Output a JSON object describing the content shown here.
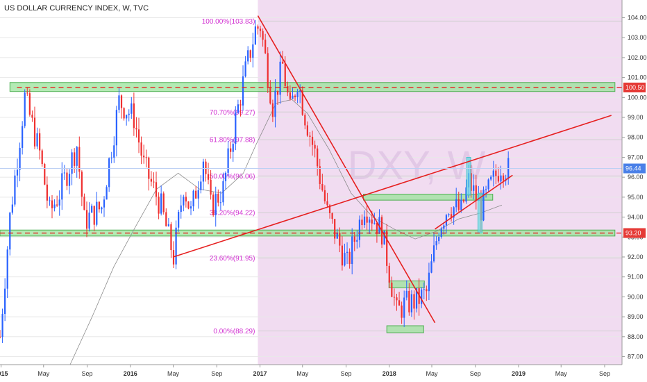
{
  "header": {
    "title": "US DOLLAR CURRENCY INDEX, W, TVC"
  },
  "watermark": "DXY, W",
  "colors": {
    "bull": "#2962ff",
    "bear": "#ef3030",
    "shade": "#f1dcf1",
    "zone_fill": "#9be39b",
    "zone_stroke": "#4caf50",
    "trendline": "#e62020",
    "fib": "#d12fd1",
    "ma": "#8c8c8c",
    "blue_tag": "#4a80e8",
    "red_tag": "#e53935",
    "cyan": "#66d9e0"
  },
  "chart_data": {
    "type": "candlestick",
    "title": "US DOLLAR CURRENCY INDEX, W, TVC",
    "y_range": [
      86.6,
      104.4
    ],
    "y_ticks": [
      "104.00",
      "103.00",
      "102.00",
      "101.00",
      "100.00",
      "99.00",
      "98.00",
      "97.00",
      "96.00",
      "95.00",
      "94.00",
      "93.00",
      "92.00",
      "91.00",
      "90.00",
      "89.00",
      "88.00",
      "87.00"
    ],
    "x_range": [
      "2014-12-29",
      "2019-10-20"
    ],
    "x_ticks": [
      {
        "label": "2015",
        "date": "2015-01-01",
        "year": true
      },
      {
        "label": "May",
        "date": "2015-05-01",
        "year": false
      },
      {
        "label": "Sep",
        "date": "2015-09-01",
        "year": false
      },
      {
        "label": "2016",
        "date": "2016-01-01",
        "year": true
      },
      {
        "label": "May",
        "date": "2016-05-01",
        "year": false
      },
      {
        "label": "Sep",
        "date": "2016-09-01",
        "year": false
      },
      {
        "label": "2017",
        "date": "2017-01-01",
        "year": true
      },
      {
        "label": "May",
        "date": "2017-05-01",
        "year": false
      },
      {
        "label": "Sep",
        "date": "2017-09-01",
        "year": false
      },
      {
        "label": "2018",
        "date": "2018-01-01",
        "year": true
      },
      {
        "label": "May",
        "date": "2018-05-01",
        "year": false
      },
      {
        "label": "Sep",
        "date": "2018-09-01",
        "year": false
      },
      {
        "label": "2019",
        "date": "2019-01-01",
        "year": true
      },
      {
        "label": "May",
        "date": "2019-05-01",
        "year": false
      },
      {
        "label": "Sep",
        "date": "2019-09-01",
        "year": false
      }
    ],
    "last_price": "96.44",
    "price_tags": [
      {
        "label": "100.50",
        "value": 100.5,
        "color": "red"
      },
      {
        "label": "93.20",
        "value": 93.2,
        "color": "red"
      },
      {
        "label": "96.44",
        "value": 96.44,
        "color": "blue"
      }
    ],
    "fib_levels": [
      {
        "label": "100.00%(103.83)",
        "value": 103.83
      },
      {
        "label": "70.70%(99.27)",
        "value": 99.27
      },
      {
        "label": "61.80%(97.88)",
        "value": 97.88
      },
      {
        "label": "50.00%(96.06)",
        "value": 96.06
      },
      {
        "label": "38.20%(94.22)",
        "value": 94.22
      },
      {
        "label": "23.60%(91.95)",
        "value": 91.95
      },
      {
        "label": "0.00%(88.29)",
        "value": 88.29
      }
    ],
    "fib_start": "2016-12-26",
    "zones": [
      {
        "x1": "2015-01-26",
        "x2": "2019-09-30",
        "y1": 100.3,
        "y2": 100.75
      },
      {
        "x1": "2014-12-29",
        "x2": "2019-09-30",
        "y1": 93.05,
        "y2": 93.35
      },
      {
        "x1": "2017-10-20",
        "x2": "2018-10-20",
        "y1": 94.85,
        "y2": 95.15
      },
      {
        "x1": "2017-12-31",
        "x2": "2018-04-10",
        "y1": 90.45,
        "y2": 90.8
      },
      {
        "x1": "2017-12-25",
        "x2": "2018-04-08",
        "y1": 88.2,
        "y2": 88.55
      }
    ],
    "dashed_levels": [
      {
        "value": 100.5,
        "x1": "2015-02-15"
      },
      {
        "value": 93.2,
        "x1": "2014-12-29"
      }
    ],
    "trendlines": [
      {
        "x1": "2016-05-01",
        "y1": 92.0,
        "x2": "2019-09-20",
        "y2": 99.1
      },
      {
        "x1": "2016-12-26",
        "y1": 104.1,
        "x2": "2018-05-10",
        "y2": 88.7
      },
      {
        "x1": "2018-05-10",
        "y1": 93.4,
        "x2": "2018-12-15",
        "y2": 96.1
      }
    ],
    "cyan_bars": [
      {
        "x": "2018-08-13",
        "y1": 95.1,
        "y2": 97.0
      },
      {
        "x": "2018-09-14",
        "y1": 93.2,
        "y2": 95.2
      }
    ],
    "moving_average_points": [
      [
        "2015-07-15",
        86.6
      ],
      [
        "2015-09-15",
        89.0
      ],
      [
        "2015-11-15",
        91.5
      ],
      [
        "2016-01-15",
        93.5
      ],
      [
        "2016-03-15",
        95.4
      ],
      [
        "2016-05-15",
        96.2
      ],
      [
        "2016-07-15",
        95.4
      ],
      [
        "2016-09-15",
        95.2
      ],
      [
        "2016-11-15",
        96.2
      ],
      [
        "2016-12-20",
        97.6
      ],
      [
        "2017-02-15",
        99.7
      ],
      [
        "2017-04-01",
        99.9
      ],
      [
        "2017-05-15",
        99.2
      ],
      [
        "2017-07-15",
        97.4
      ],
      [
        "2017-09-15",
        95.2
      ],
      [
        "2017-11-15",
        94.0
      ],
      [
        "2018-01-15",
        93.4
      ],
      [
        "2018-03-15",
        92.9
      ],
      [
        "2018-05-15",
        93.3
      ],
      [
        "2018-07-15",
        93.9
      ],
      [
        "2018-09-15",
        94.2
      ],
      [
        "2018-11-15",
        94.6
      ]
    ],
    "price_path": [
      [
        "2014-12-29",
        88.0
      ],
      [
        "2015-01-26",
        94.0
      ],
      [
        "2015-03-09",
        100.0
      ],
      [
        "2015-04-20",
        97.2
      ],
      [
        "2015-05-18",
        94.2
      ],
      [
        "2015-06-15",
        95.2
      ],
      [
        "2015-08-03",
        97.6
      ],
      [
        "2015-08-24",
        93.8
      ],
      [
        "2015-10-12",
        94.5
      ],
      [
        "2015-11-30",
        99.8
      ],
      [
        "2016-01-11",
        99.0
      ],
      [
        "2016-02-08",
        96.6
      ],
      [
        "2016-03-28",
        94.5
      ],
      [
        "2016-05-02",
        92.0
      ],
      [
        "2016-05-30",
        95.6
      ],
      [
        "2016-06-20",
        94.2
      ],
      [
        "2016-07-25",
        97.0
      ],
      [
        "2016-08-15",
        94.5
      ],
      [
        "2016-09-19",
        95.4
      ],
      [
        "2016-10-24",
        98.9
      ],
      [
        "2016-11-21",
        101.3
      ],
      [
        "2016-12-19",
        103.4
      ],
      [
        "2017-01-02",
        103.6
      ],
      [
        "2017-02-06",
        99.6
      ],
      [
        "2017-03-06",
        101.6
      ],
      [
        "2017-03-27",
        99.3
      ],
      [
        "2017-04-17",
        100.9
      ],
      [
        "2017-05-08",
        99.1
      ],
      [
        "2017-06-05",
        97.2
      ],
      [
        "2017-07-10",
        94.2
      ],
      [
        "2017-09-04",
        91.6
      ],
      [
        "2017-10-23",
        94.6
      ],
      [
        "2017-12-11",
        93.3
      ],
      [
        "2018-01-22",
        89.2
      ],
      [
        "2018-02-12",
        89.6
      ],
      [
        "2018-03-19",
        89.8
      ],
      [
        "2018-04-16",
        90.2
      ],
      [
        "2018-05-21",
        93.5
      ],
      [
        "2018-06-18",
        94.6
      ],
      [
        "2018-07-23",
        94.3
      ],
      [
        "2018-08-13",
        95.8
      ],
      [
        "2018-09-17",
        94.4
      ],
      [
        "2018-10-15",
        95.6
      ],
      [
        "2018-11-12",
        96.6
      ],
      [
        "2018-12-03",
        96.4
      ]
    ]
  }
}
